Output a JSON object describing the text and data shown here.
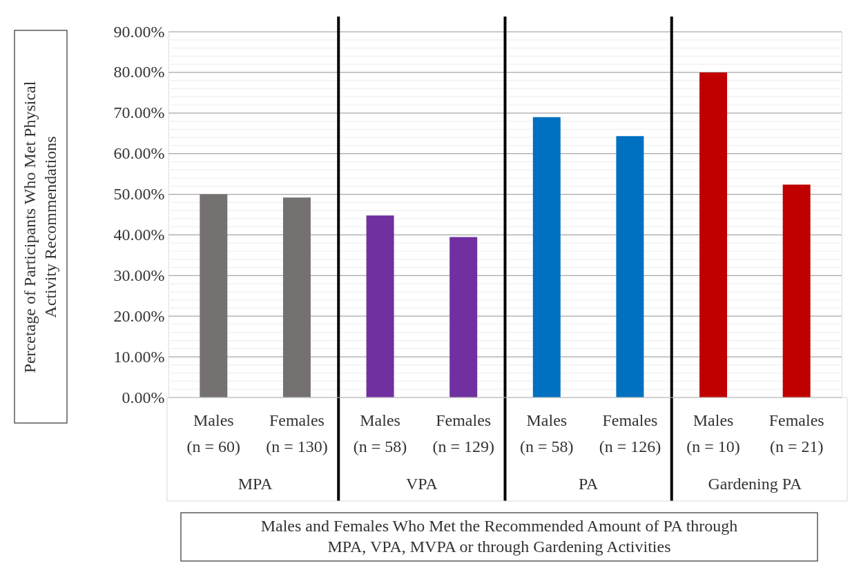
{
  "chart_data": {
    "type": "bar",
    "ylabel": "Percetage of Participants Who Met Physical\nActivity Recommendations",
    "xlabel": "Males and Females Who Met the Recommended Amount of PA through\nMPA, VPA, MVPA or through Gardening Activities",
    "categories": [
      "Males\n(n = 60)",
      "Females\n(n = 130)",
      "Males\n(n = 58)",
      "Females\n(n = 129)",
      "Males\n(n = 58)",
      "Females\n(n = 126)",
      "Males\n(n = 10)",
      "Females\n(n = 21)"
    ],
    "values": [
      50.0,
      49.2,
      44.8,
      39.5,
      69.0,
      64.3,
      80.0,
      52.4
    ],
    "colors": [
      "#767171",
      "#767171",
      "#7030a0",
      "#7030a0",
      "#0070c0",
      "#0070c0",
      "#c00000",
      "#c00000"
    ],
    "annotations": [
      "MPA",
      "VPA",
      "PA",
      "Gardening PA"
    ],
    "ylim": [
      0,
      90
    ],
    "yticks": [
      {
        "value": 0,
        "label": "0.00%"
      },
      {
        "value": 2,
        "label": null
      },
      {
        "value": 4,
        "label": null
      },
      {
        "value": 6,
        "label": null
      },
      {
        "value": 8,
        "label": null
      },
      {
        "value": 10,
        "label": "10.00%"
      },
      {
        "value": 12,
        "label": null
      },
      {
        "value": 14,
        "label": null
      },
      {
        "value": 16,
        "label": null
      },
      {
        "value": 18,
        "label": null
      },
      {
        "value": 20,
        "label": "20.00%"
      },
      {
        "value": 22,
        "label": null
      },
      {
        "value": 24,
        "label": null
      },
      {
        "value": 26,
        "label": null
      },
      {
        "value": 28,
        "label": null
      },
      {
        "value": 30,
        "label": "30.00%"
      },
      {
        "value": 32,
        "label": null
      },
      {
        "value": 34,
        "label": null
      },
      {
        "value": 36,
        "label": null
      },
      {
        "value": 38,
        "label": null
      },
      {
        "value": 40,
        "label": "40.00%"
      },
      {
        "value": 42,
        "label": null
      },
      {
        "value": 44,
        "label": null
      },
      {
        "value": 46,
        "label": null
      },
      {
        "value": 48,
        "label": null
      },
      {
        "value": 50,
        "label": "50.00%"
      },
      {
        "value": 52,
        "label": null
      },
      {
        "value": 54,
        "label": null
      },
      {
        "value": 56,
        "label": null
      },
      {
        "value": 58,
        "label": null
      },
      {
        "value": 60,
        "label": "60.00%"
      },
      {
        "value": 62,
        "label": null
      },
      {
        "value": 64,
        "label": null
      },
      {
        "value": 66,
        "label": null
      },
      {
        "value": 68,
        "label": null
      },
      {
        "value": 70,
        "label": "70.00%"
      },
      {
        "value": 72,
        "label": null
      },
      {
        "value": 74,
        "label": null
      },
      {
        "value": 76,
        "label": null
      },
      {
        "value": 78,
        "label": null
      },
      {
        "value": 80,
        "label": "80.00%"
      },
      {
        "value": 82,
        "label": null
      },
      {
        "value": 84,
        "label": null
      },
      {
        "value": 86,
        "label": null
      },
      {
        "value": 88,
        "label": null
      },
      {
        "value": 90,
        "label": "90.00%"
      }
    ],
    "grid": true
  }
}
